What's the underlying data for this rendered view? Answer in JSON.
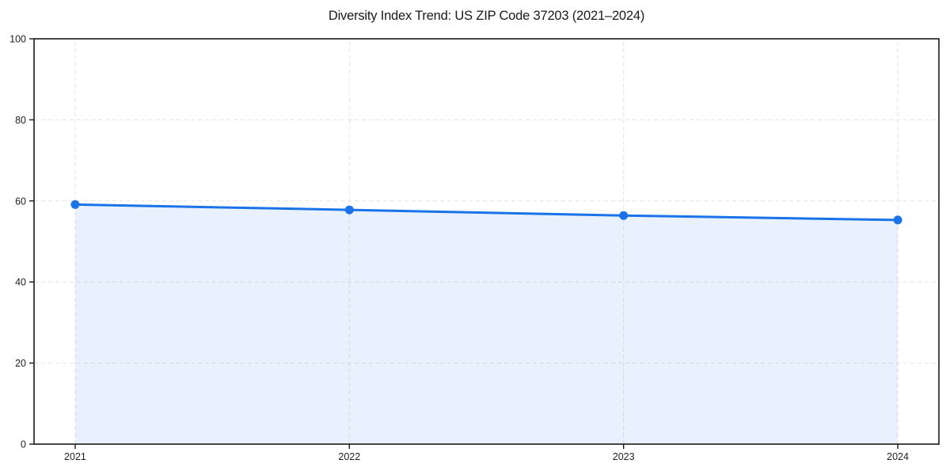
{
  "page": {
    "background": "#ffffff"
  },
  "chart_data": {
    "type": "line",
    "title": "Diversity Index Trend: US ZIP Code 37203 (2021–2024)",
    "xlabel": "",
    "ylabel": "",
    "x": [
      2021,
      2022,
      2023,
      2024
    ],
    "x_labels": [
      "2021",
      "2022",
      "2023",
      "2024"
    ],
    "series": [
      {
        "name": "Diversity Index",
        "values": [
          59.1,
          57.8,
          56.4,
          55.3
        ]
      }
    ],
    "xlim": [
      2020.85,
      2024.15
    ],
    "ylim": [
      0,
      100
    ],
    "yticks": [
      0,
      20,
      40,
      60,
      80,
      100
    ],
    "ytick_labels": [
      "0",
      "20",
      "40",
      "60",
      "80",
      "100"
    ],
    "grid": true,
    "grid_style": "dashed",
    "legend": "none",
    "marker": "circle",
    "area_fill": true,
    "colors": {
      "line": "#1a73e8",
      "marker": "#1a73e8",
      "area": "rgba(26,115,232,0.10)",
      "grid": "#e2e2e2",
      "spine": "#1a1a1a",
      "text": "#222222",
      "title": "#1a1a1a"
    }
  }
}
